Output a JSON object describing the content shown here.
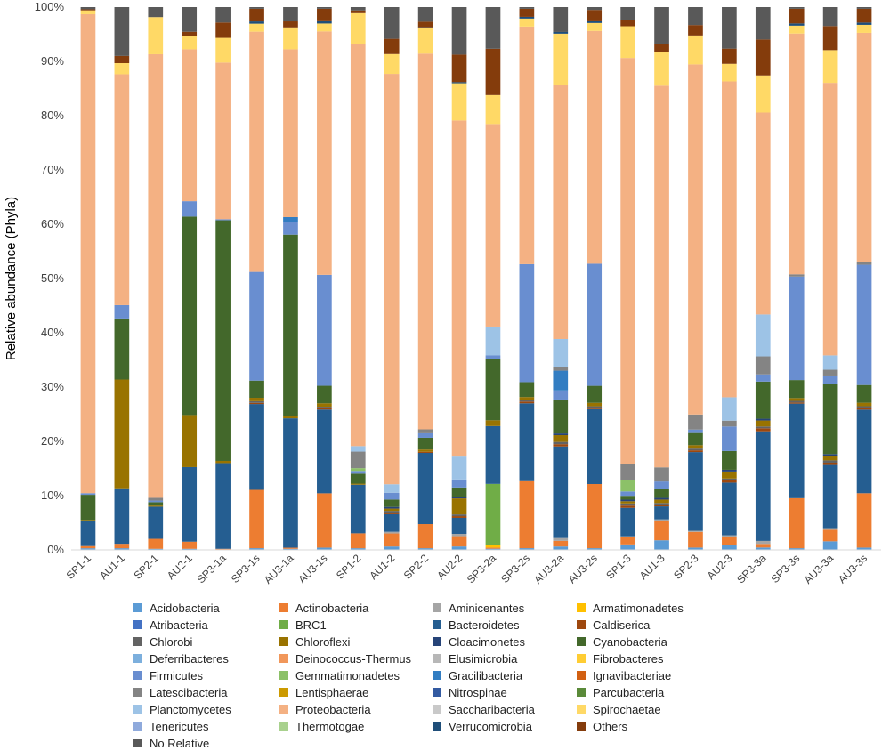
{
  "chart_data": {
    "type": "stacked-bar-100",
    "title": "",
    "xlabel": "",
    "ylabel": "Relative abundance (Phyla)",
    "ylim": [
      0,
      100
    ],
    "yticks": [
      "0%",
      "10%",
      "20%",
      "30%",
      "40%",
      "50%",
      "60%",
      "70%",
      "80%",
      "90%",
      "100%"
    ],
    "grid": false,
    "legend": "bottom",
    "categories": [
      "SP1-1",
      "AU1-1",
      "SP2-1",
      "AU2-1",
      "SP3-1a",
      "SP3-1s",
      "AU3-1a",
      "AU3-1s",
      "SP1-2",
      "AU1-2",
      "SP2-2",
      "AU2-2",
      "SP3-2a",
      "SP3-2s",
      "AU3-2a",
      "AU3-2s",
      "SP1-3",
      "AU1-3",
      "SP2-3",
      "AU2-3",
      "SP3-3a",
      "SP3-3s",
      "AU3-3a",
      "AU3-3s"
    ],
    "series": [
      {
        "name": "Acidobacteria",
        "color": "#5B9BD5",
        "values": [
          0.3,
          0.3,
          0.2,
          0.2,
          0.1,
          0.3,
          0.2,
          0.4,
          0.3,
          0.6,
          0.3,
          0.6,
          0.2,
          0.3,
          0.6,
          0.3,
          1.0,
          1.7,
          0.4,
          0.8,
          0.4,
          0.3,
          1.5,
          0.4
        ]
      },
      {
        "name": "Actinobacteria",
        "color": "#ED7D31",
        "values": [
          0.4,
          0.8,
          1.8,
          1.3,
          0.1,
          10.2,
          0.2,
          9.6,
          2.7,
          2.3,
          4.3,
          1.8,
          0.2,
          11.7,
          1.0,
          11.3,
          1.3,
          3.4,
          2.7,
          1.4,
          0.6,
          8.9,
          2.0,
          9.5
        ]
      },
      {
        "name": "Aminicenantes",
        "color": "#A5A5A5",
        "values": [
          0,
          0,
          0,
          0,
          0,
          0,
          0,
          0,
          0,
          0.3,
          0,
          0.4,
          0,
          0,
          0.5,
          0,
          0.2,
          0.3,
          0.2,
          0.3,
          0.5,
          0,
          0.3,
          0
        ]
      },
      {
        "name": "Armatimonadetes",
        "color": "#FFC000",
        "values": [
          0,
          0,
          0,
          0,
          0,
          0,
          0,
          0,
          0,
          0,
          0,
          0,
          0.5,
          0,
          0,
          0,
          0,
          0,
          0,
          0,
          0,
          0,
          0,
          0
        ]
      },
      {
        "name": "Atribacteria",
        "color": "#4472C4",
        "values": [
          0,
          0,
          0,
          0,
          0,
          0,
          0,
          0,
          0,
          0,
          0,
          0,
          0,
          0,
          0,
          0,
          0,
          0,
          0,
          0,
          0,
          0,
          0,
          0
        ]
      },
      {
        "name": "BRC1",
        "color": "#70AD47",
        "values": [
          0,
          0,
          0,
          0,
          0,
          0,
          0,
          0,
          0,
          0,
          0,
          0,
          10.5,
          0,
          0,
          0,
          0,
          0,
          0,
          0,
          0,
          0,
          0,
          0
        ]
      },
      {
        "name": "Bacteroidetes",
        "color": "#255E91",
        "values": [
          4.6,
          10.0,
          5.8,
          13.6,
          15.6,
          15.0,
          23.6,
          14.8,
          8.8,
          3.1,
          12.7,
          2.8,
          10.0,
          13.6,
          16.2,
          13.2,
          5.2,
          2.3,
          13.6,
          9.0,
          18.3,
          16.8,
          11.0,
          14.6
        ]
      },
      {
        "name": "Caldiserica",
        "color": "#9E480E",
        "values": [
          0,
          0,
          0,
          0,
          0,
          0.2,
          0,
          0.2,
          0,
          0.3,
          0.2,
          0.3,
          0,
          0.3,
          0.4,
          0.2,
          0.4,
          0.3,
          0.3,
          0.4,
          0.5,
          0.2,
          0.4,
          0.3
        ]
      },
      {
        "name": "Chlorobi",
        "color": "#636363",
        "values": [
          0,
          0,
          0,
          0,
          0,
          0.3,
          0,
          0.3,
          0,
          0.3,
          0,
          0.3,
          0,
          0.3,
          0.4,
          0.3,
          0.4,
          0.3,
          0.3,
          0.3,
          0.3,
          0.3,
          0.4,
          0.3
        ]
      },
      {
        "name": "Chloroflexi",
        "color": "#997300",
        "values": [
          0.2,
          19.6,
          0.2,
          9.5,
          0.4,
          0.6,
          0.4,
          0.6,
          0.2,
          0.4,
          0.4,
          2.8,
          1.0,
          0.5,
          1.2,
          0.6,
          0.4,
          0.6,
          0.6,
          1.2,
          1.0,
          0.5,
          0.8,
          0.6
        ]
      },
      {
        "name": "Cloacimonetes",
        "color": "#264478",
        "values": [
          0,
          0,
          0,
          0,
          0,
          0,
          0,
          0,
          0,
          0.3,
          0,
          0.3,
          0,
          0,
          0.3,
          0,
          0.3,
          0.3,
          0,
          0.3,
          0.3,
          0,
          0.3,
          0
        ]
      },
      {
        "name": "Cyanobacteria",
        "color": "#43682B",
        "values": [
          4.6,
          11.0,
          0.6,
          36.2,
          43.8,
          3.0,
          33.1,
          3.1,
          1.8,
          1.3,
          2.1,
          1.6,
          10.6,
          2.6,
          6.0,
          3.0,
          0.7,
          1.6,
          2.1,
          3.2,
          6.2,
          3.2,
          12.3,
          3.1
        ]
      },
      {
        "name": "Deferribacteres",
        "color": "#7CAFDD",
        "values": [
          0,
          0,
          0,
          0,
          0,
          0,
          0,
          0,
          0,
          0,
          0,
          0,
          0,
          0,
          0,
          0,
          0,
          0,
          0,
          0,
          0,
          0,
          0,
          0
        ]
      },
      {
        "name": "Deinococcus-Thermus",
        "color": "#F1975A",
        "values": [
          0,
          0,
          0,
          0,
          0,
          0,
          0,
          0,
          0,
          0,
          0,
          0,
          0,
          0,
          0,
          0,
          0,
          0,
          0,
          0,
          0,
          0,
          0,
          0
        ]
      },
      {
        "name": "Elusimicrobia",
        "color": "#B7B7B7",
        "values": [
          0,
          0,
          0,
          0,
          0,
          0,
          0,
          0,
          0,
          0,
          0,
          0,
          0,
          0,
          0,
          0,
          0,
          0,
          0,
          0,
          0,
          0,
          0,
          0
        ]
      },
      {
        "name": "Fibrobacteres",
        "color": "#FFCD33",
        "values": [
          0,
          0,
          0,
          0,
          0,
          0,
          0,
          0,
          0,
          0,
          0,
          0,
          0,
          0,
          0,
          0,
          0,
          0,
          0,
          0,
          0,
          0,
          0,
          0
        ]
      },
      {
        "name": "Firmicutes",
        "color": "#698ED0",
        "values": [
          0.3,
          2.4,
          0.3,
          2.8,
          0.2,
          19.0,
          2.3,
          19.6,
          0.5,
          1.2,
          0.8,
          1.4,
          0.6,
          20.6,
          1.6,
          21.5,
          0.8,
          1.3,
          0.6,
          4.2,
          1.2,
          18.4,
          1.4,
          21.0
        ]
      },
      {
        "name": "Gemmatimonadetes",
        "color": "#8CC168",
        "values": [
          0,
          0,
          0,
          0,
          0,
          0,
          0,
          0,
          0.5,
          0,
          0,
          0,
          0,
          0,
          0,
          0,
          2.0,
          0,
          0,
          0,
          0,
          0,
          0,
          0
        ]
      },
      {
        "name": "Gracilibacteria",
        "color": "#327DC2",
        "values": [
          0,
          0,
          0,
          0,
          0,
          0,
          0.9,
          0,
          0,
          0,
          0,
          0,
          0,
          0,
          3.5,
          0,
          0,
          0,
          0,
          0,
          0,
          0,
          0,
          0
        ]
      },
      {
        "name": "Ignavibacteriae",
        "color": "#D26012",
        "values": [
          0,
          0,
          0,
          0,
          0,
          0,
          0,
          0,
          0,
          0,
          0,
          0,
          0,
          0,
          0,
          0,
          0,
          0,
          0,
          0,
          0,
          0,
          0,
          0
        ]
      },
      {
        "name": "Latescibacteria",
        "color": "#848484",
        "values": [
          0,
          0,
          0.5,
          0,
          0,
          0,
          0,
          0,
          3.0,
          0,
          0.7,
          0,
          0,
          0,
          0.6,
          0,
          3.0,
          2.5,
          2.6,
          1.0,
          3.0,
          0.4,
          1.0,
          0.5
        ]
      },
      {
        "name": "Lentisphaerae",
        "color": "#CC9A00",
        "values": [
          0,
          0,
          0,
          0,
          0,
          0,
          0,
          0,
          0,
          0,
          0,
          0,
          0,
          0,
          0,
          0,
          0,
          0,
          0,
          0,
          0,
          0,
          0,
          0
        ]
      },
      {
        "name": "Nitrospinae",
        "color": "#335AA1",
        "values": [
          0,
          0,
          0,
          0,
          0,
          0,
          0,
          0,
          0,
          0,
          0,
          0,
          0,
          0,
          0,
          0,
          0,
          0,
          0,
          0,
          0,
          0,
          0,
          0
        ]
      },
      {
        "name": "Parcubacteria",
        "color": "#5A8A39",
        "values": [
          0,
          0,
          0,
          0,
          0,
          0,
          0,
          0,
          0,
          0,
          0,
          0,
          0,
          0,
          0,
          0,
          0,
          0,
          0,
          0,
          0,
          0,
          0,
          0
        ]
      },
      {
        "name": "Planctomycetes",
        "color": "#9DC3E6",
        "values": [
          0,
          0,
          0,
          0,
          0,
          0,
          0,
          0,
          1.0,
          1.5,
          0,
          4.0,
          5.0,
          0,
          5.0,
          0,
          0,
          0,
          0,
          4.0,
          7.0,
          0,
          2.5,
          0
        ]
      },
      {
        "name": "Proteobacteria",
        "color": "#F4B183",
        "values": [
          87.8,
          41.6,
          80.0,
          27.7,
          28.5,
          42.0,
          30.6,
          43.0,
          72.8,
          72.5,
          67.0,
          58.7,
          35.0,
          41.5,
          45.0,
          41.0,
          74.3,
          67.5,
          60.5,
          54.0,
          33.7,
          42.8,
          47.5,
          40.0
        ]
      },
      {
        "name": "Saccharibacteria",
        "color": "#C9C9C9",
        "values": [
          0,
          0,
          0,
          0,
          0,
          0,
          0,
          0,
          0,
          0,
          0,
          0,
          0,
          0,
          0,
          0,
          0,
          0,
          0,
          0,
          0,
          0,
          0,
          0
        ]
      },
      {
        "name": "Spirochaetae",
        "color": "#FFD966",
        "values": [
          0.7,
          2.0,
          6.7,
          2.5,
          4.5,
          1.4,
          4.0,
          1.4,
          5.6,
          3.5,
          4.5,
          6.5,
          5.0,
          1.4,
          9.0,
          1.4,
          5.8,
          6.0,
          5.0,
          3.0,
          6.2,
          1.4,
          5.7,
          1.4
        ]
      },
      {
        "name": "Tenericutes",
        "color": "#8FAADC",
        "values": [
          0,
          0,
          0,
          0,
          0,
          0,
          0,
          0,
          0,
          0,
          0,
          0,
          0,
          0,
          0,
          0,
          0,
          0,
          0,
          0,
          0,
          0,
          0,
          0
        ]
      },
      {
        "name": "Thermotogae",
        "color": "#A9D18E",
        "values": [
          0,
          0,
          0,
          0,
          0,
          0,
          0,
          0,
          0,
          0,
          0,
          0,
          0,
          0,
          0,
          0,
          0,
          0,
          0,
          0,
          0,
          0,
          0,
          0
        ]
      },
      {
        "name": "Verrucomicrobia",
        "color": "#1F4E79",
        "values": [
          0,
          0,
          0,
          0,
          0,
          0.4,
          0,
          0.4,
          0,
          0,
          0.2,
          0.2,
          0,
          0.3,
          0.3,
          0.3,
          0,
          0,
          0,
          0,
          0,
          0.4,
          0,
          0.4
        ]
      },
      {
        "name": "Others",
        "color": "#843C0C",
        "values": [
          0.2,
          1.3,
          0,
          0.7,
          2.8,
          2.2,
          1.1,
          2.2,
          0.5,
          2.7,
          1.0,
          4.8,
          8.0,
          1.4,
          0,
          2.0,
          1.2,
          1.4,
          1.8,
          2.6,
          6.0,
          2.6,
          4.2,
          2.4
        ]
      },
      {
        "name": "No Relative",
        "color": "#595959",
        "values": [
          0.4,
          8.8,
          1.8,
          4.5,
          2.8,
          0.3,
          2.6,
          0.3,
          0.6,
          5.6,
          2.6,
          8.3,
          7.2,
          0.3,
          4.4,
          0.5,
          2.3,
          6.5,
          3.1,
          7.1,
          5.4,
          0.3,
          3.3,
          0.3
        ]
      }
    ]
  }
}
